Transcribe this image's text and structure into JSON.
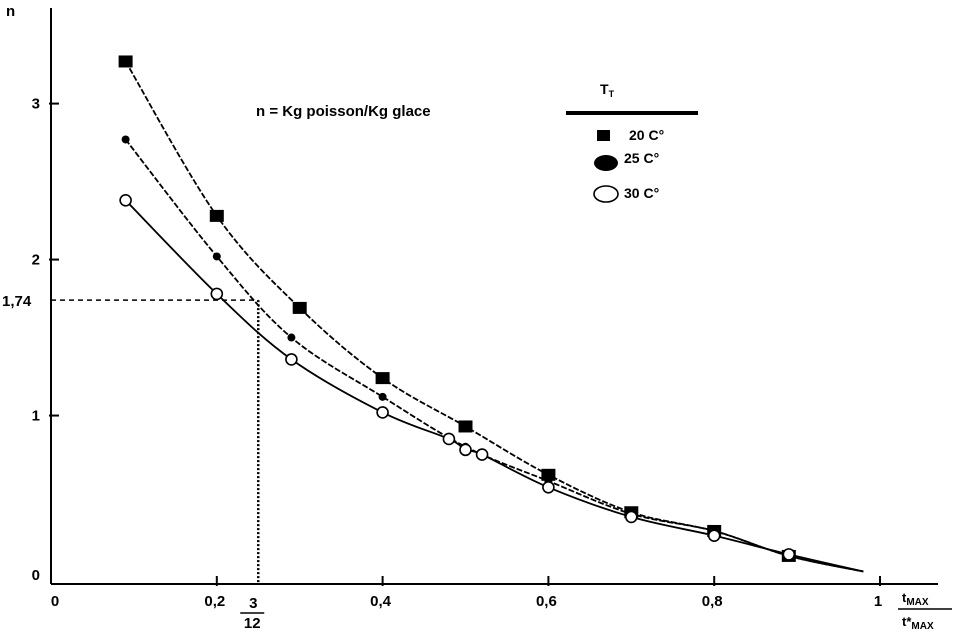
{
  "chart_data": {
    "type": "line",
    "ylabel": "n",
    "xlabel_num": "t",
    "xlabel_num_sub": "MAX",
    "xlabel_den": "t*",
    "xlabel_den_sub": "MAX",
    "xlim": [
      0,
      1
    ],
    "ylim": [
      -0.08,
      3.6
    ],
    "x_ticks": [
      {
        "v": 0,
        "label": "0"
      },
      {
        "v": 0.2,
        "label": "0,2"
      },
      {
        "v": 0.4,
        "label": "0,4"
      },
      {
        "v": 0.6,
        "label": "0,6"
      },
      {
        "v": 0.8,
        "label": "0,8"
      },
      {
        "v": 1.0,
        "label": "1"
      }
    ],
    "y_ticks": [
      {
        "v": 0,
        "label": "0"
      },
      {
        "v": 1,
        "label": "1"
      },
      {
        "v": 2,
        "label": "2"
      },
      {
        "v": 3,
        "label": "3"
      }
    ],
    "annotation": "n = Kg poisson/Kg glace",
    "reference": {
      "y_value": 1.74,
      "y_label": "1,74",
      "x_value": 0.25,
      "x_label_num": "3",
      "x_label_den": "12"
    },
    "legend_title": "T",
    "legend_title_sub": "T",
    "legend_position": "top-right",
    "grid": false,
    "series": [
      {
        "name": "20 C°",
        "marker": "square-filled",
        "x": [
          0.09,
          0.2,
          0.3,
          0.4,
          0.5,
          0.6,
          0.7,
          0.8,
          0.89
        ],
        "y": [
          3.27,
          2.28,
          1.69,
          1.24,
          0.93,
          0.62,
          0.38,
          0.26,
          0.1
        ]
      },
      {
        "name": "25 C°",
        "marker": "circle-filled",
        "x": [
          0.09,
          0.2,
          0.29,
          0.4,
          0.5,
          0.6,
          0.7,
          0.8,
          0.89
        ],
        "y": [
          2.77,
          2.02,
          1.5,
          1.12,
          0.8,
          0.58,
          0.37,
          0.26,
          0.1
        ]
      },
      {
        "name": "30 C°",
        "marker": "circle-open",
        "x": [
          0.09,
          0.2,
          0.29,
          0.4,
          0.48,
          0.5,
          0.52,
          0.6,
          0.7,
          0.8,
          0.89
        ],
        "y": [
          2.38,
          1.78,
          1.36,
          1.02,
          0.85,
          0.78,
          0.75,
          0.54,
          0.35,
          0.23,
          0.11
        ]
      }
    ]
  }
}
